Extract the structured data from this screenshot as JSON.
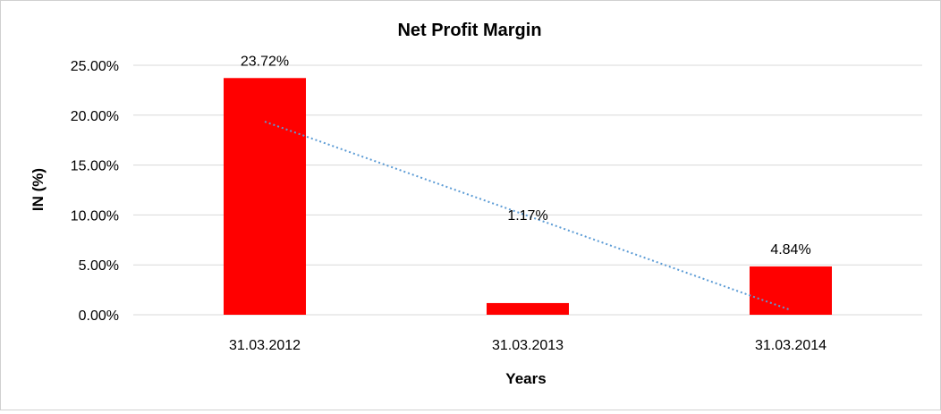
{
  "chart_data": {
    "type": "bar",
    "title": "Net Profit Margin",
    "xlabel": "Years",
    "ylabel": "IN (%)",
    "categories": [
      "31.03.2012",
      "31.03.2013",
      "31.03.2014"
    ],
    "series": [
      {
        "values": [
          23.72,
          1.17,
          4.84
        ],
        "data_labels": [
          "23.72%",
          "1.17%",
          "4.84%"
        ],
        "color": "#ff0000"
      }
    ],
    "ylim": [
      0,
      25
    ],
    "yticks": [
      0,
      5,
      10,
      15,
      20,
      25
    ],
    "ytick_labels": [
      "0.00%",
      "5.00%",
      "10.00%",
      "15.00%",
      "20.00%",
      "25.00%"
    ],
    "grid": true,
    "gridline_color": "#d9d9d9",
    "trendline": {
      "type": "linear",
      "style": "dotted",
      "color": "#5b9bd5"
    },
    "legend": "none"
  }
}
